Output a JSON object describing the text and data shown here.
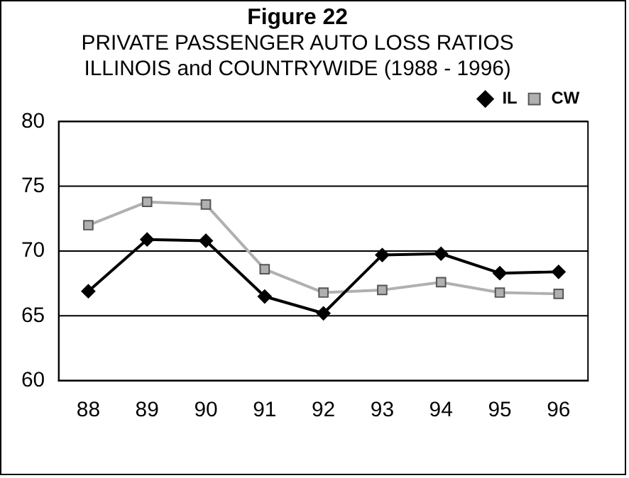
{
  "chart_data": {
    "type": "line",
    "title": "Figure 22",
    "subtitle": "PRIVATE PASSENGER AUTO LOSS RATIOS\nILLINOIS and COUNTRYWIDE (1988 - 1996)",
    "categories": [
      "88",
      "89",
      "90",
      "91",
      "92",
      "93",
      "94",
      "95",
      "96"
    ],
    "series": [
      {
        "name": "IL",
        "color": "#000000",
        "marker": "diamond",
        "values": [
          66.9,
          70.9,
          70.8,
          66.5,
          65.2,
          69.7,
          69.8,
          68.3,
          68.4
        ]
      },
      {
        "name": "CW",
        "color": "#b0b0b0",
        "marker": "square",
        "values": [
          72.0,
          73.8,
          73.6,
          68.6,
          66.8,
          67.0,
          67.6,
          66.8,
          66.7
        ]
      }
    ],
    "ylim": [
      60,
      80
    ],
    "yticks": [
      60,
      65,
      70,
      75,
      80
    ],
    "grid": "y",
    "legend": "top right"
  }
}
